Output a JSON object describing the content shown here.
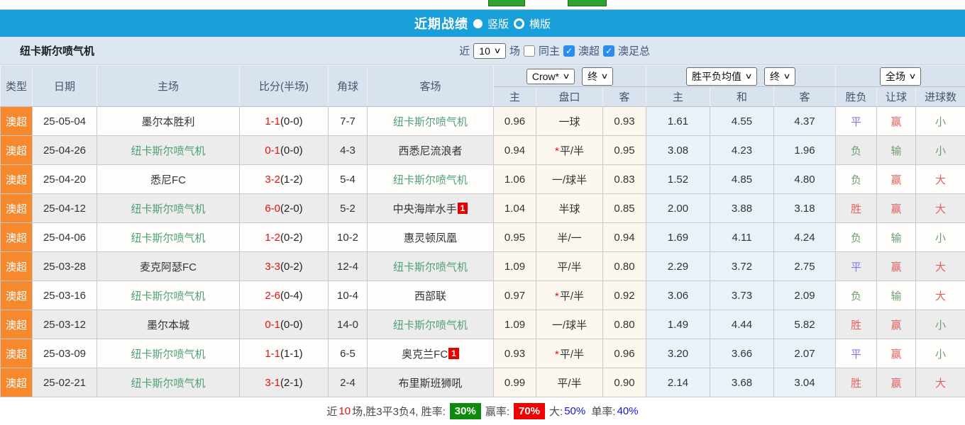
{
  "title_bar": {
    "title": "近期战绩",
    "option_vertical": "竖版",
    "option_horizontal": "横版",
    "bar_color": "#199fd9"
  },
  "filter_bar": {
    "team": "纽卡斯尔喷气机",
    "near_label": "近",
    "matches_select_value": "10",
    "matches_label": "场",
    "checkbox_same_home": {
      "label": "同主",
      "checked": false
    },
    "checkbox_aleague": {
      "label": "澳超",
      "checked": true
    },
    "checkbox_cup": {
      "label": "澳足总",
      "checked": true
    }
  },
  "table": {
    "main_headers": [
      "类型",
      "日期",
      "主场",
      "比分(半场)",
      "角球",
      "客场"
    ],
    "selects": {
      "odds_company": "Crow*",
      "odds_time": "终",
      "avg_label": "胜平负均值",
      "avg_time": "终",
      "result_scope": "全场"
    },
    "sub_headers": [
      "主",
      "盘口",
      "客",
      "主",
      "和",
      "客",
      "胜负",
      "让球",
      "进球数"
    ],
    "rows": [
      {
        "league": "澳超",
        "date": "25-05-04",
        "home": "墨尔本胜利",
        "home_green": false,
        "score": "1-1",
        "half": "(0-0)",
        "corners": "7-7",
        "away": "纽卡斯尔喷气机",
        "away_green": true,
        "away_badge": "",
        "o_home": "0.96",
        "handicap": "一球",
        "star": false,
        "o_away": "0.93",
        "avg_home": "1.61",
        "avg_draw": "4.55",
        "avg_away": "4.37",
        "r_wl": "平",
        "r_wl_c": "draw",
        "r_hc": "赢",
        "r_hc_c": "win",
        "r_goal": "小",
        "r_goal_c": "lose"
      },
      {
        "league": "澳超",
        "date": "25-04-26",
        "home": "纽卡斯尔喷气机",
        "home_green": true,
        "score": "0-1",
        "half": "(0-0)",
        "corners": "4-3",
        "away": "西悉尼流浪者",
        "away_green": false,
        "away_badge": "",
        "o_home": "0.94",
        "handicap": "平/半",
        "star": true,
        "o_away": "0.95",
        "avg_home": "3.08",
        "avg_draw": "4.23",
        "avg_away": "1.96",
        "r_wl": "负",
        "r_wl_c": "lose",
        "r_hc": "输",
        "r_hc_c": "lose",
        "r_goal": "小",
        "r_goal_c": "lose"
      },
      {
        "league": "澳超",
        "date": "25-04-20",
        "home": "悉尼FC",
        "home_green": false,
        "score": "3-2",
        "half": "(1-2)",
        "corners": "5-4",
        "away": "纽卡斯尔喷气机",
        "away_green": true,
        "away_badge": "",
        "o_home": "1.06",
        "handicap": "一/球半",
        "star": false,
        "o_away": "0.83",
        "avg_home": "1.52",
        "avg_draw": "4.85",
        "avg_away": "4.80",
        "r_wl": "负",
        "r_wl_c": "lose",
        "r_hc": "赢",
        "r_hc_c": "win",
        "r_goal": "大",
        "r_goal_c": "win"
      },
      {
        "league": "澳超",
        "date": "25-04-12",
        "home": "纽卡斯尔喷气机",
        "home_green": true,
        "score": "6-0",
        "half": "(2-0)",
        "corners": "5-2",
        "away": "中央海岸水手",
        "away_green": false,
        "away_badge": "1",
        "o_home": "1.04",
        "handicap": "半球",
        "star": false,
        "o_away": "0.85",
        "avg_home": "2.00",
        "avg_draw": "3.88",
        "avg_away": "3.18",
        "r_wl": "胜",
        "r_wl_c": "win",
        "r_hc": "赢",
        "r_hc_c": "win",
        "r_goal": "大",
        "r_goal_c": "win"
      },
      {
        "league": "澳超",
        "date": "25-04-06",
        "home": "纽卡斯尔喷气机",
        "home_green": true,
        "score": "1-2",
        "half": "(0-2)",
        "corners": "10-2",
        "away": "惠灵顿凤凰",
        "away_green": false,
        "away_badge": "",
        "o_home": "0.95",
        "handicap": "半/一",
        "star": false,
        "o_away": "0.94",
        "avg_home": "1.69",
        "avg_draw": "4.11",
        "avg_away": "4.24",
        "r_wl": "负",
        "r_wl_c": "lose",
        "r_hc": "输",
        "r_hc_c": "lose",
        "r_goal": "小",
        "r_goal_c": "lose"
      },
      {
        "league": "澳超",
        "date": "25-03-28",
        "home": "麦克阿瑟FC",
        "home_green": false,
        "score": "3-3",
        "half": "(0-2)",
        "corners": "12-4",
        "away": "纽卡斯尔喷气机",
        "away_green": true,
        "away_badge": "",
        "o_home": "1.09",
        "handicap": "平/半",
        "star": false,
        "o_away": "0.80",
        "avg_home": "2.29",
        "avg_draw": "3.72",
        "avg_away": "2.75",
        "r_wl": "平",
        "r_wl_c": "draw",
        "r_hc": "赢",
        "r_hc_c": "win",
        "r_goal": "大",
        "r_goal_c": "win"
      },
      {
        "league": "澳超",
        "date": "25-03-16",
        "home": "纽卡斯尔喷气机",
        "home_green": true,
        "score": "2-6",
        "half": "(0-4)",
        "corners": "10-4",
        "away": "西部联",
        "away_green": false,
        "away_badge": "",
        "o_home": "0.97",
        "handicap": "平/半",
        "star": true,
        "o_away": "0.92",
        "avg_home": "3.06",
        "avg_draw": "3.73",
        "avg_away": "2.09",
        "r_wl": "负",
        "r_wl_c": "lose",
        "r_hc": "输",
        "r_hc_c": "lose",
        "r_goal": "大",
        "r_goal_c": "win"
      },
      {
        "league": "澳超",
        "date": "25-03-12",
        "home": "墨尔本城",
        "home_green": false,
        "score": "0-1",
        "half": "(0-0)",
        "corners": "14-0",
        "away": "纽卡斯尔喷气机",
        "away_green": true,
        "away_badge": "",
        "o_home": "1.09",
        "handicap": "一/球半",
        "star": false,
        "o_away": "0.80",
        "avg_home": "1.49",
        "avg_draw": "4.44",
        "avg_away": "5.82",
        "r_wl": "胜",
        "r_wl_c": "win",
        "r_hc": "赢",
        "r_hc_c": "win",
        "r_goal": "小",
        "r_goal_c": "lose"
      },
      {
        "league": "澳超",
        "date": "25-03-09",
        "home": "纽卡斯尔喷气机",
        "home_green": true,
        "score": "1-1",
        "half": "(1-1)",
        "corners": "6-5",
        "away": "奥克兰FC",
        "away_green": false,
        "away_badge": "1",
        "o_home": "0.93",
        "handicap": "平/半",
        "star": true,
        "o_away": "0.96",
        "avg_home": "3.20",
        "avg_draw": "3.66",
        "avg_away": "2.07",
        "r_wl": "平",
        "r_wl_c": "draw",
        "r_hc": "赢",
        "r_hc_c": "win",
        "r_goal": "小",
        "r_goal_c": "lose"
      },
      {
        "league": "澳超",
        "date": "25-02-21",
        "home": "纽卡斯尔喷气机",
        "home_green": true,
        "score": "3-1",
        "half": "(2-1)",
        "corners": "2-4",
        "away": "布里斯班狮吼",
        "away_green": false,
        "away_badge": "",
        "o_home": "0.99",
        "handicap": "平/半",
        "star": false,
        "o_away": "0.90",
        "avg_home": "2.14",
        "avg_draw": "3.68",
        "avg_away": "3.04",
        "r_wl": "胜",
        "r_wl_c": "win",
        "r_hc": "赢",
        "r_hc_c": "win",
        "r_goal": "大",
        "r_goal_c": "win"
      }
    ]
  },
  "summary": {
    "near_label": "近",
    "near_count": "10",
    "record_text": "场,胜3平3负4, 胜率:",
    "win_rate": "30%",
    "handicap_label": "赢率:",
    "handicap_rate": "70%",
    "big_label": "大:",
    "big_rate": "50%",
    "single_label": "单率:",
    "single_rate": "40%"
  },
  "colors": {
    "title_bar_blue": "#199fd9",
    "league_orange": "#f6882e",
    "team_green": "#4fa173",
    "score_red": "#e8100c",
    "result_win_red": "#e06360",
    "result_lose_green": "#6f9f71",
    "result_draw_blue": "#7b7bf0",
    "odds_column_cream": "#fdf8ef",
    "avg_column_blue": "#e9f2f8",
    "header_bg": "#d9e3ef",
    "summary_green_badge": "#0f8a0f",
    "summary_red_badge": "#ee0202"
  }
}
